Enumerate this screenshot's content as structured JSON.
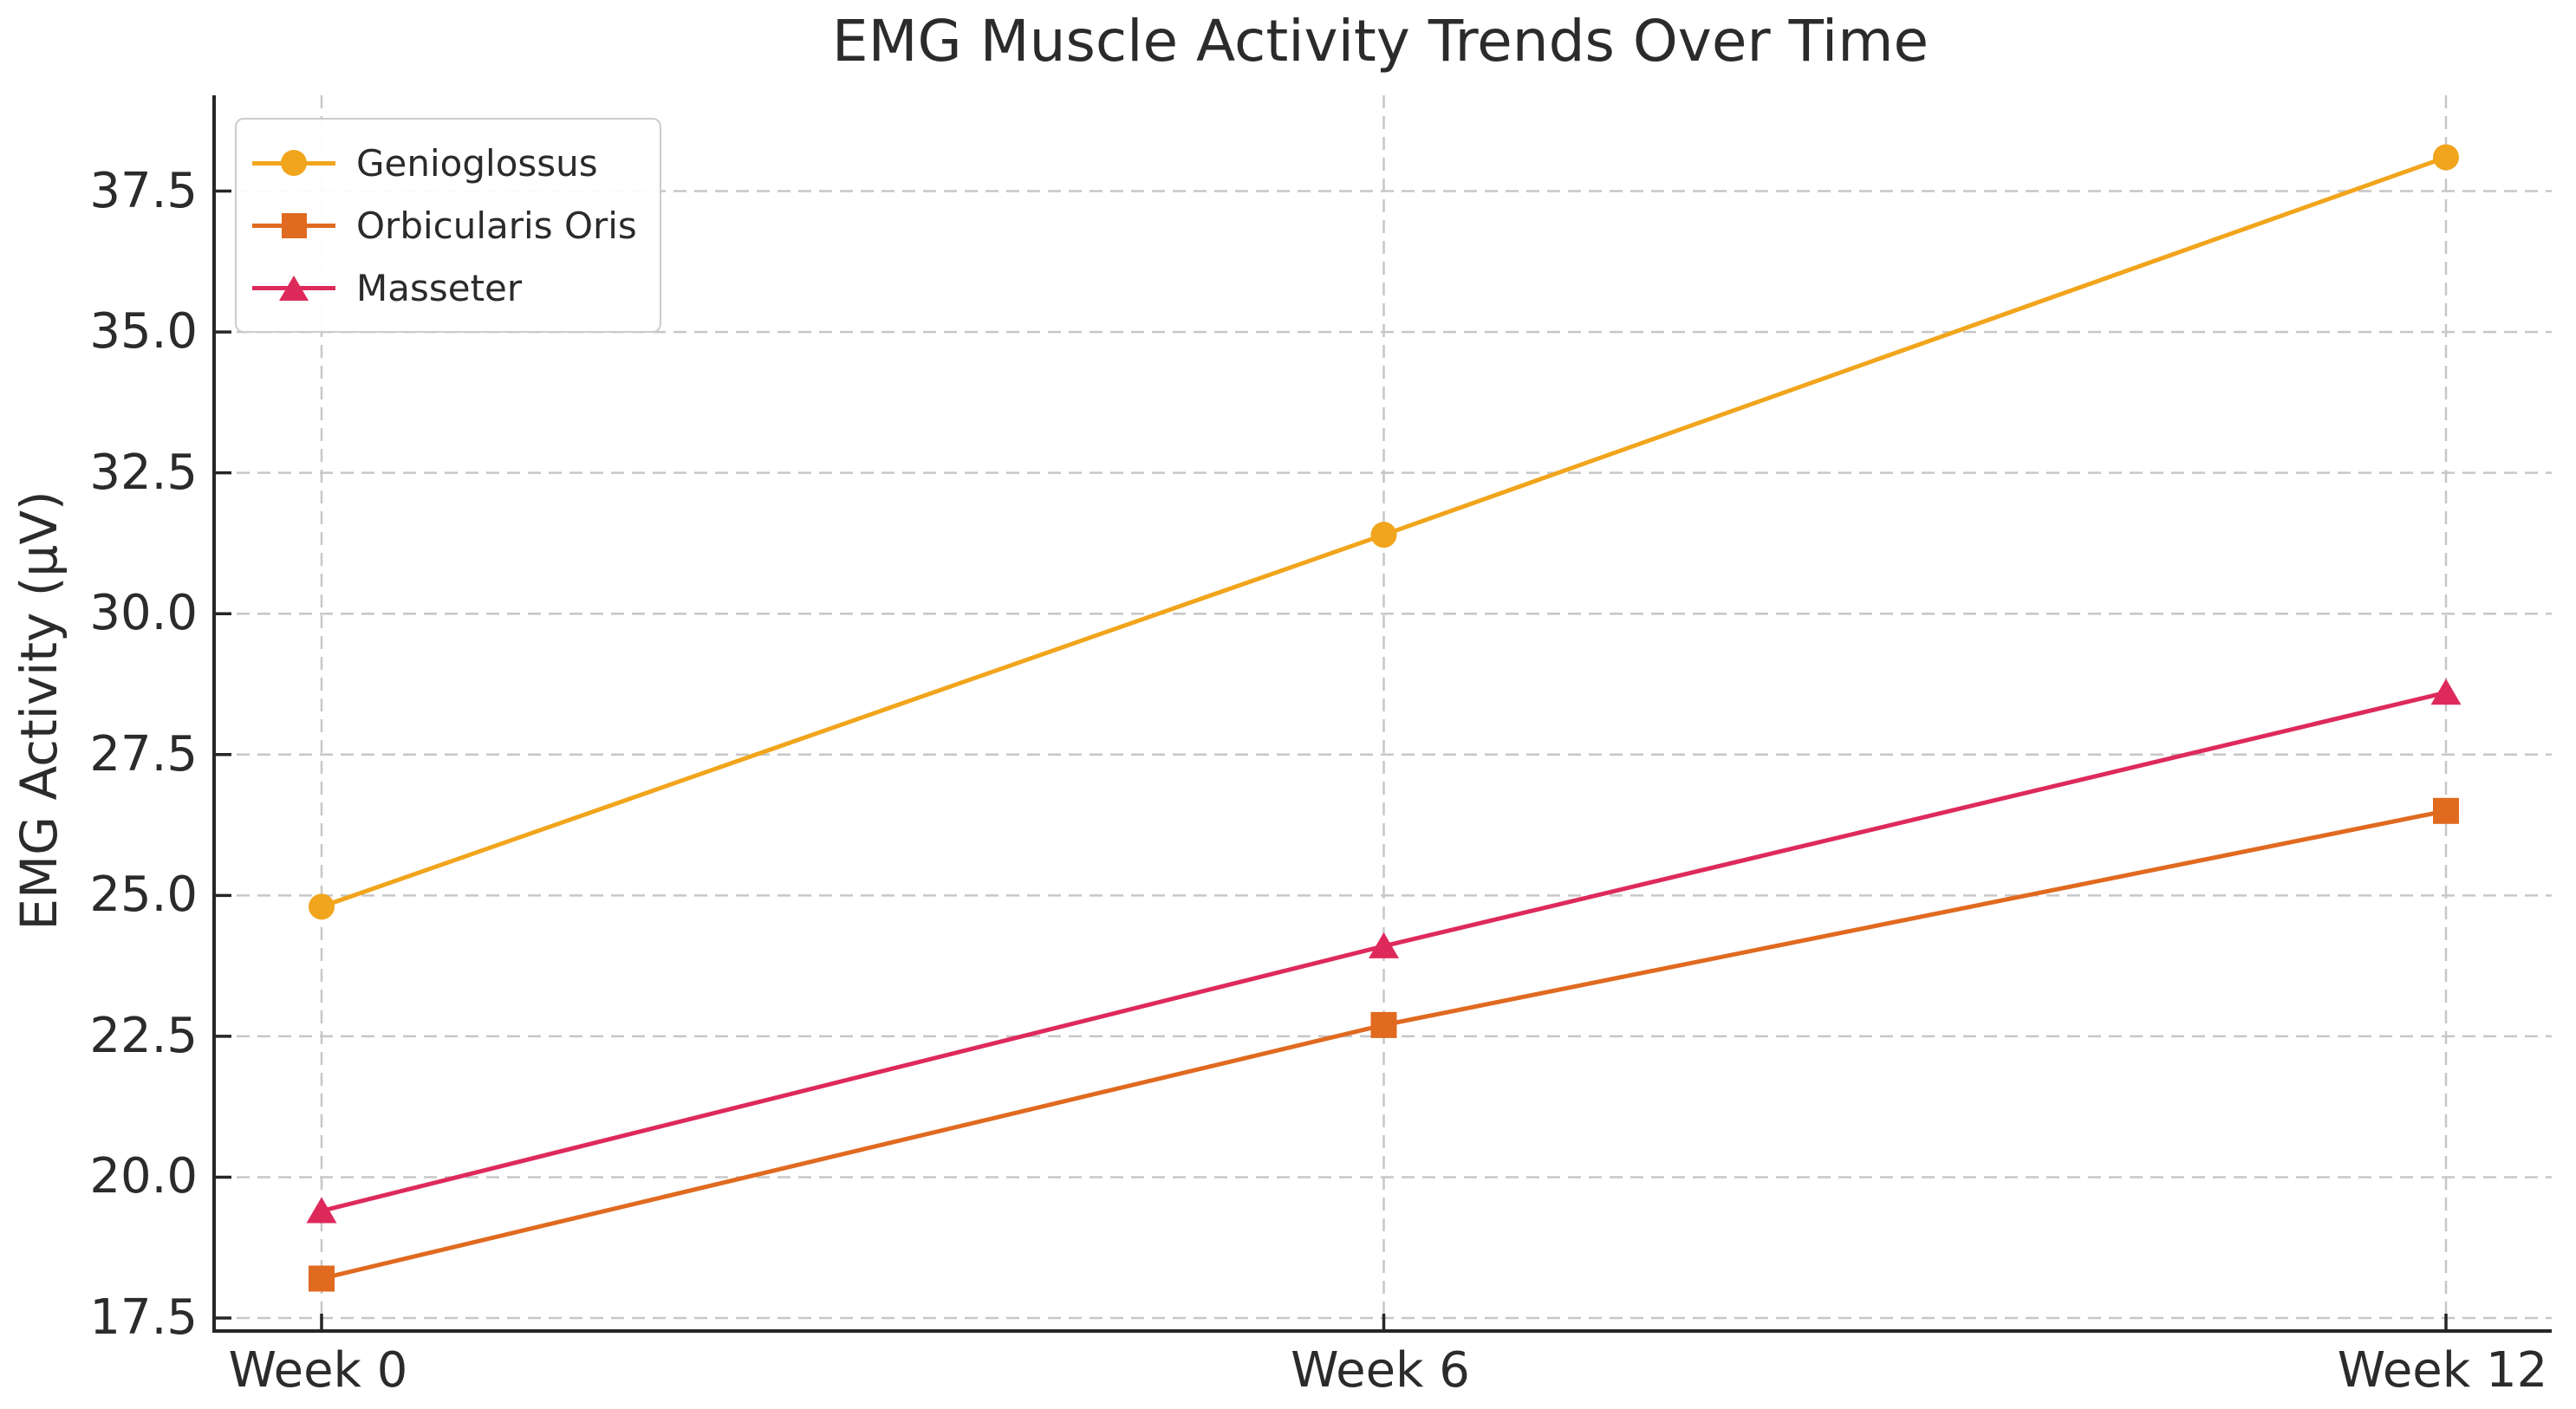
{
  "title": "EMG Muscle Activity Trends Over Time",
  "chart_data": {
    "type": "line",
    "title": "EMG Muscle Activity Trends Over Time",
    "xlabel": "",
    "ylabel": "EMG Activity (μV)",
    "categories": [
      "Week 0",
      "Week 6",
      "Week 12"
    ],
    "series": [
      {
        "name": "Genioglossus",
        "marker": "circle",
        "color": "#F1A51C",
        "values": [
          24.8,
          31.4,
          38.1
        ]
      },
      {
        "name": "Orbicularis Oris",
        "marker": "square",
        "color": "#E06A20",
        "values": [
          18.2,
          22.7,
          26.5
        ]
      },
      {
        "name": "Masseter",
        "marker": "triangle",
        "color": "#DE2A5B",
        "values": [
          19.4,
          24.1,
          28.6
        ]
      }
    ],
    "yticks": [
      17.5,
      20.0,
      22.5,
      25.0,
      27.5,
      30.0,
      32.5,
      35.0,
      37.5
    ],
    "ytick_labels": [
      "17.5",
      "20.0",
      "22.5",
      "25.0",
      "27.5",
      "30.0",
      "32.5",
      "35.0",
      "37.5"
    ],
    "ylim": [
      17.3,
      39.2
    ],
    "grid": true,
    "grid_style": "dashed",
    "legend_position": "upper left"
  },
  "colors": {
    "text": "#2b2b2b",
    "spine": "#262626",
    "grid": "#c7c7c7",
    "legend_border": "#cccccc",
    "background": "#ffffff"
  }
}
